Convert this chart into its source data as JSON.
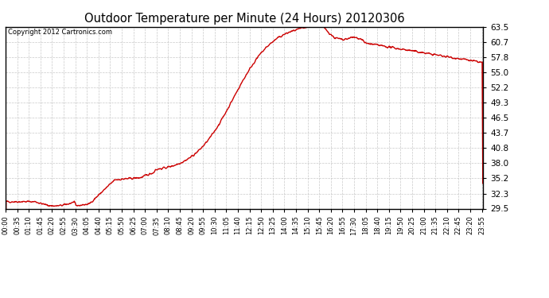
{
  "title": "Outdoor Temperature per Minute (24 Hours) 20120306",
  "copyright_text": "Copyright 2012 Cartronics.com",
  "line_color": "#cc0000",
  "background_color": "#ffffff",
  "plot_bg_color": "#ffffff",
  "grid_color": "#bbbbbb",
  "yticks": [
    29.5,
    32.3,
    35.2,
    38.0,
    40.8,
    43.7,
    46.5,
    49.3,
    52.2,
    55.0,
    57.8,
    60.7,
    63.5
  ],
  "xtick_labels": [
    "00:00",
    "00:35",
    "01:10",
    "01:45",
    "02:20",
    "02:55",
    "03:30",
    "04:05",
    "04:40",
    "05:15",
    "05:50",
    "06:25",
    "07:00",
    "07:35",
    "08:10",
    "08:45",
    "09:20",
    "09:55",
    "10:30",
    "11:05",
    "11:40",
    "12:15",
    "12:50",
    "13:25",
    "14:00",
    "14:35",
    "15:10",
    "15:45",
    "16:20",
    "16:55",
    "17:30",
    "18:05",
    "18:40",
    "19:15",
    "19:50",
    "20:25",
    "21:00",
    "21:35",
    "22:10",
    "22:45",
    "23:20",
    "23:55"
  ],
  "ymin": 29.5,
  "ymax": 63.5,
  "line_width": 1.0,
  "figwidth": 6.9,
  "figheight": 3.75,
  "dpi": 100
}
